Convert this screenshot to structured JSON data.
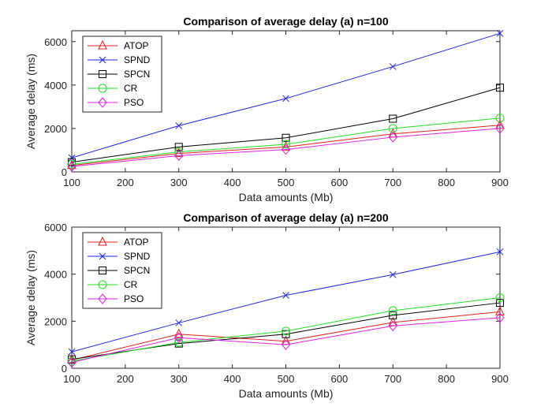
{
  "chart_data": [
    {
      "type": "line",
      "title": "Comparison of average delay (a) n=100",
      "xlabel": "Data amounts (Mb)",
      "ylabel": "Average delay (ms)",
      "x": [
        100,
        300,
        500,
        700,
        900
      ],
      "xlim": [
        100,
        900
      ],
      "ylim": [
        0,
        6500
      ],
      "xticks": [
        "100",
        "200",
        "300",
        "400",
        "500",
        "600",
        "700",
        "800",
        "900"
      ],
      "yticks": [
        "0",
        "2000",
        "4000",
        "6000"
      ],
      "legend_position": "top-left",
      "series": [
        {
          "name": "ATOP",
          "color": "#e0201c",
          "marker": "triangle",
          "values": [
            300,
            850,
            1150,
            1750,
            2150
          ]
        },
        {
          "name": "SPND",
          "color": "#1f2ad8",
          "marker": "x",
          "values": [
            650,
            2130,
            3380,
            4850,
            6380
          ]
        },
        {
          "name": "SPCN",
          "color": "#000000",
          "marker": "square",
          "values": [
            450,
            1150,
            1570,
            2450,
            3880
          ]
        },
        {
          "name": "CR",
          "color": "#22e022",
          "marker": "circle",
          "values": [
            350,
            920,
            1270,
            2000,
            2480
          ]
        },
        {
          "name": "PSO",
          "color": "#e020e0",
          "marker": "diamond",
          "values": [
            250,
            750,
            1030,
            1600,
            2000
          ]
        }
      ]
    },
    {
      "type": "line",
      "title": "Comparison of average delay (a) n=200",
      "xlabel": "Data amounts (Mb)",
      "ylabel": "Average delay (ms)",
      "x": [
        100,
        300,
        500,
        700,
        900
      ],
      "xlim": [
        100,
        900
      ],
      "ylim": [
        0,
        6000
      ],
      "xticks": [
        "100",
        "200",
        "300",
        "400",
        "500",
        "600",
        "700",
        "800",
        "900"
      ],
      "yticks": [
        "0",
        "2000",
        "4000",
        "6000"
      ],
      "legend_position": "top-left",
      "series": [
        {
          "name": "ATOP",
          "color": "#e0201c",
          "marker": "triangle",
          "values": [
            350,
            1450,
            1150,
            1950,
            2400
          ]
        },
        {
          "name": "SPND",
          "color": "#1f2ad8",
          "marker": "x",
          "values": [
            700,
            1930,
            3100,
            3980,
            4950
          ]
        },
        {
          "name": "SPCN",
          "color": "#000000",
          "marker": "square",
          "values": [
            380,
            1050,
            1450,
            2250,
            2780
          ]
        },
        {
          "name": "CR",
          "color": "#22e022",
          "marker": "circle",
          "values": [
            300,
            1100,
            1580,
            2450,
            3000
          ]
        },
        {
          "name": "PSO",
          "color": "#e020e0",
          "marker": "diamond",
          "values": [
            250,
            1300,
            1000,
            1800,
            2150
          ]
        }
      ]
    }
  ]
}
